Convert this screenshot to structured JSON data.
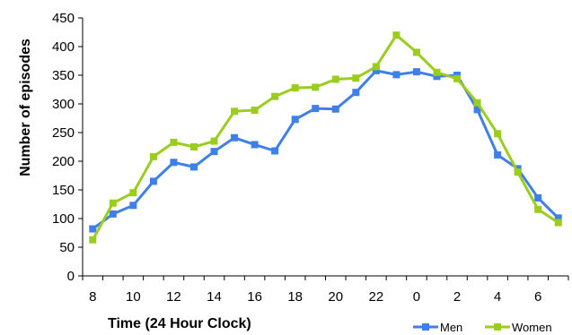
{
  "chart_data": {
    "type": "line",
    "xlabel": "Time (24 Hour Clock)",
    "ylabel": "Number of episodes",
    "ylim": [
      0,
      450
    ],
    "yticks": [
      0,
      50,
      100,
      150,
      200,
      250,
      300,
      350,
      400,
      450
    ],
    "x_hours": [
      8,
      9,
      10,
      11,
      12,
      13,
      14,
      15,
      16,
      17,
      18,
      19,
      20,
      21,
      22,
      23,
      0,
      1,
      2,
      3,
      4,
      5,
      6,
      7
    ],
    "x_tick_labels": [
      "8",
      "10",
      "12",
      "14",
      "16",
      "18",
      "20",
      "22",
      "0",
      "2",
      "4",
      "6"
    ],
    "grid": false,
    "legend_position": "bottom-right",
    "series": [
      {
        "name": "Men",
        "color": "#3f7fe8",
        "values": [
          82,
          108,
          123,
          165,
          198,
          190,
          217,
          241,
          229,
          218,
          273,
          292,
          291,
          320,
          358,
          351,
          356,
          348,
          350,
          290,
          211,
          187,
          136,
          101
        ]
      },
      {
        "name": "Women",
        "color": "#9acd1e",
        "values": [
          63,
          127,
          145,
          208,
          233,
          225,
          235,
          287,
          289,
          313,
          328,
          329,
          343,
          345,
          365,
          420,
          390,
          355,
          344,
          302,
          248,
          181,
          116,
          93
        ]
      }
    ]
  }
}
